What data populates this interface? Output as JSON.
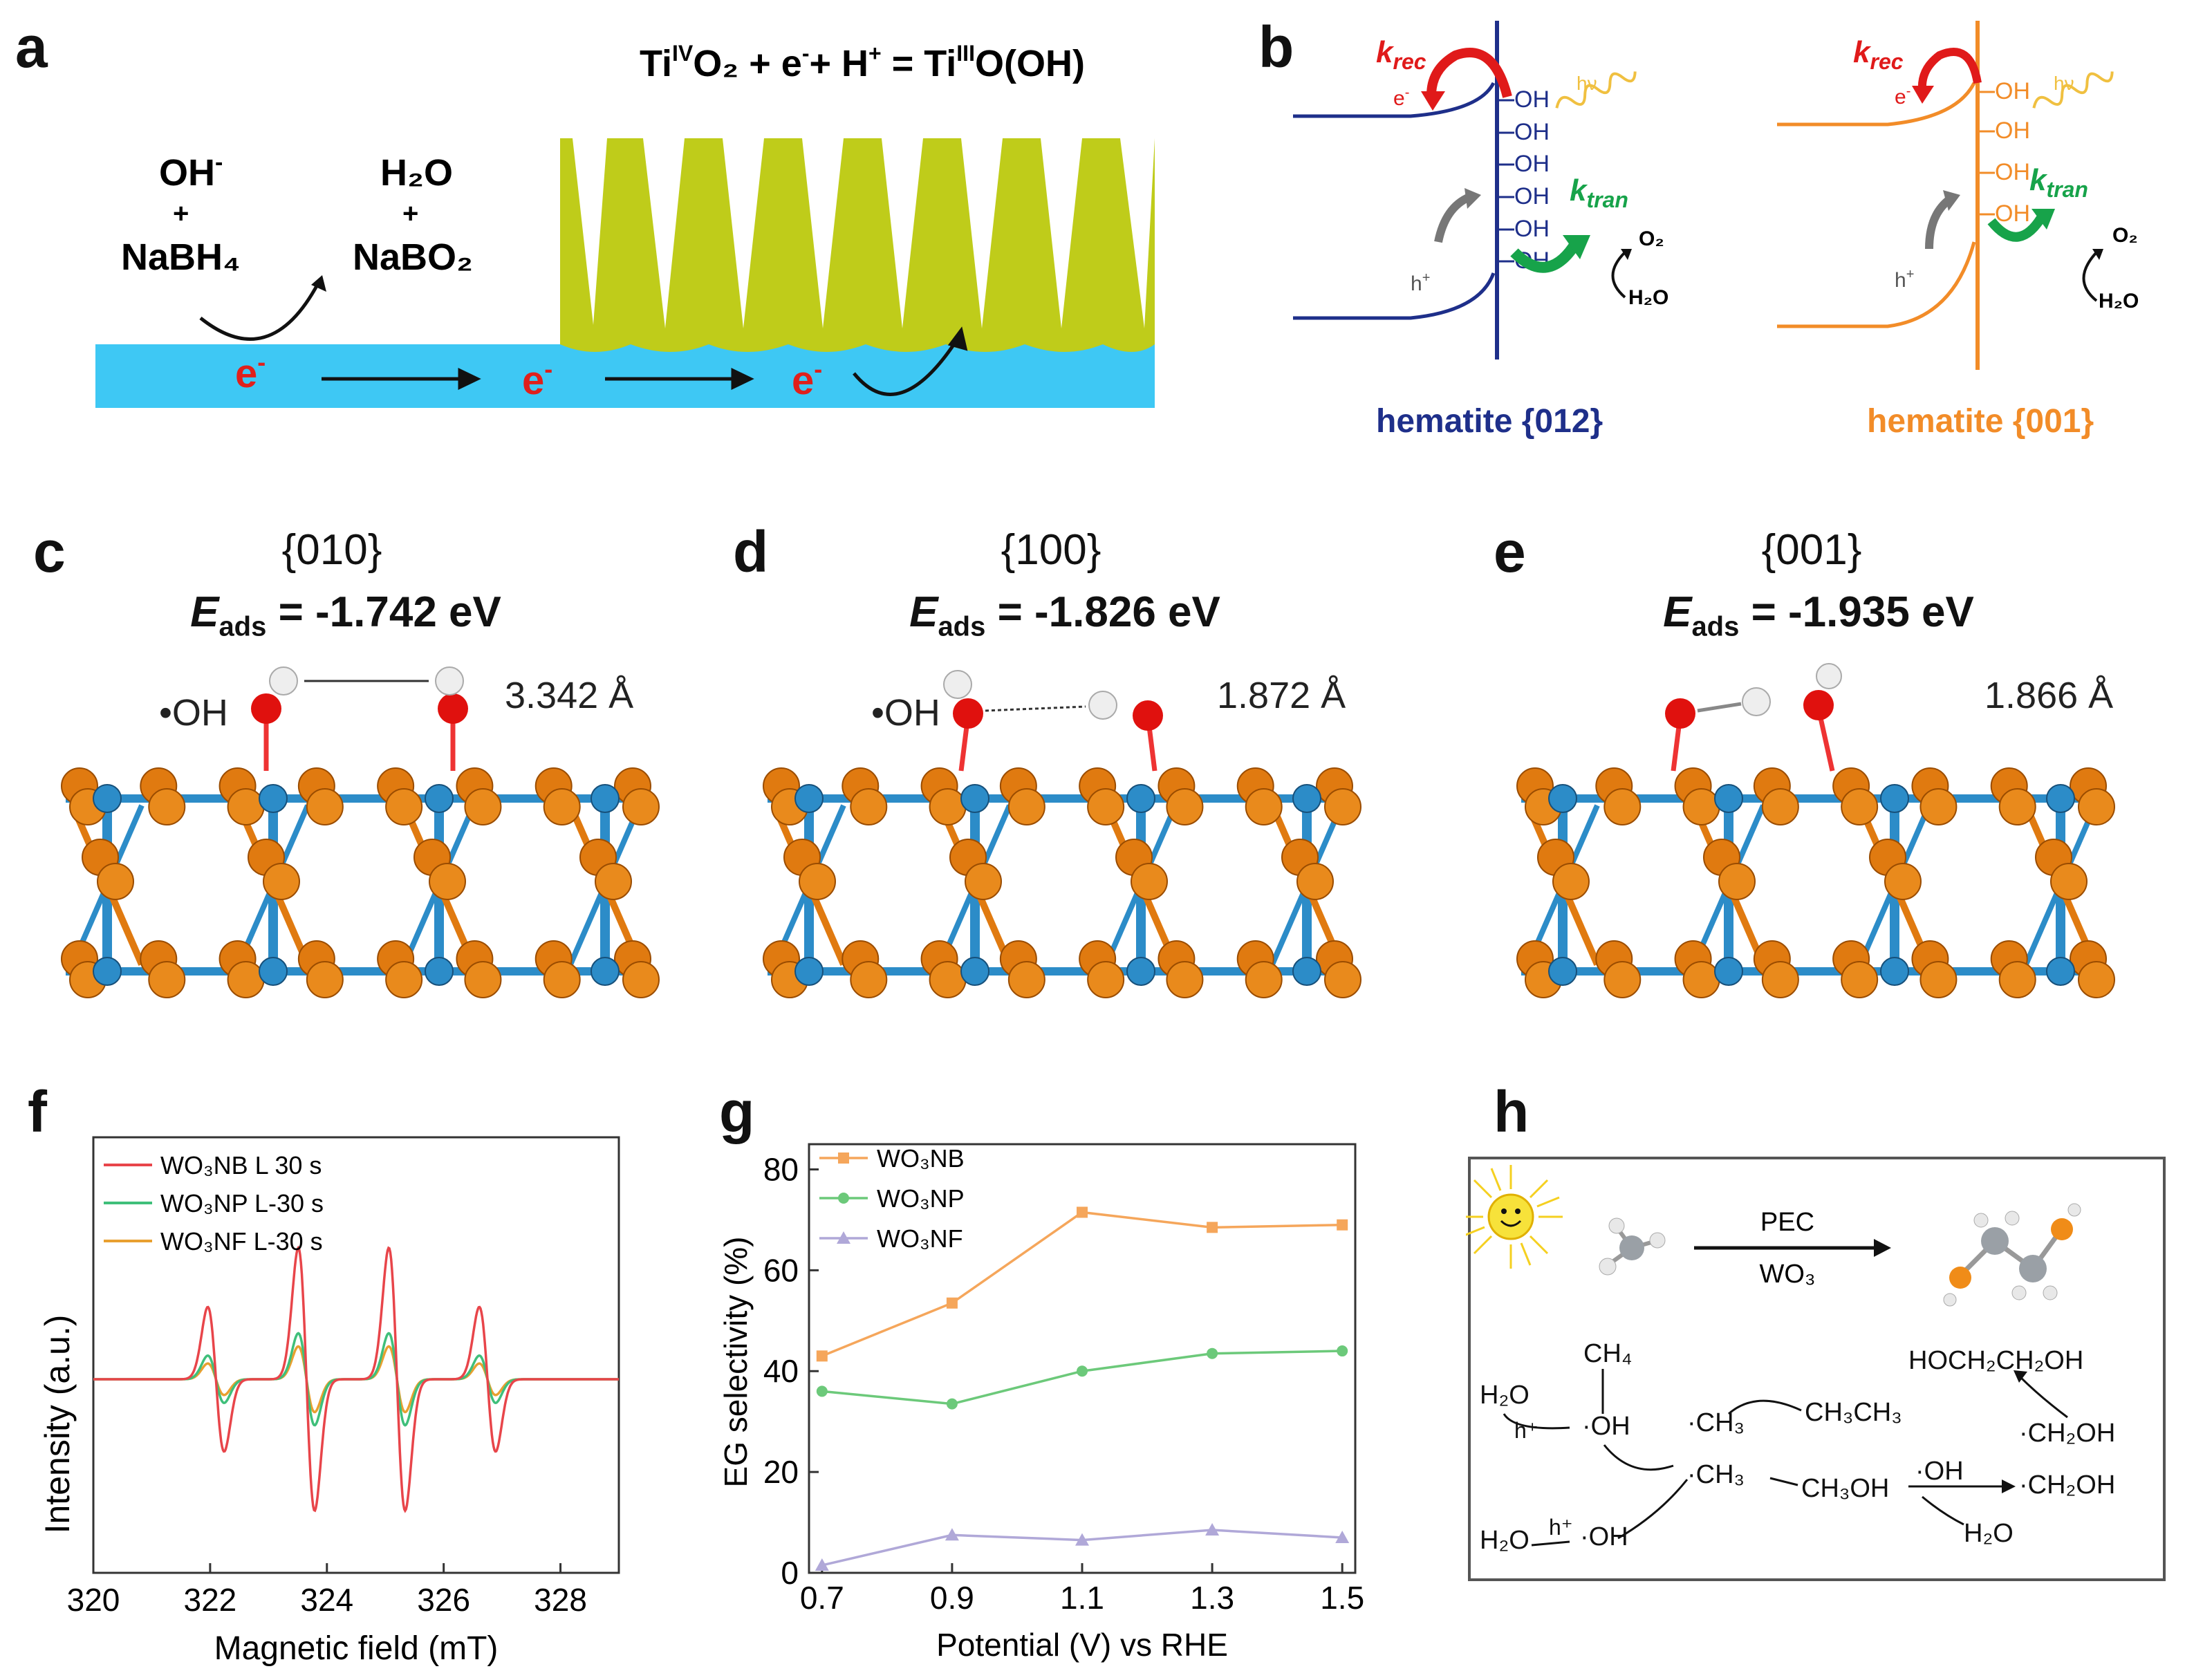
{
  "panel_labels": {
    "a": "a",
    "b": "b",
    "c": "c",
    "d": "d",
    "e": "e",
    "f": "f",
    "g": "g",
    "h": "h"
  },
  "panel_a": {
    "equation_left": "Ti",
    "equation_sup1": "IV",
    "equation_mid": "O₂ + e",
    "equation_sup2": "-",
    "equation_mid2": "+ H",
    "equation_sup3": "+",
    "equation_mid3": " = Ti",
    "equation_sup4": "III",
    "equation_right": "O(OH)",
    "reactant1": "OH",
    "reactant1_sup": "-",
    "plus": "+",
    "reactant2": "NaBH₄",
    "product1": "H₂O",
    "product2": "NaBO₂",
    "electron": "e",
    "electron_sup": "-",
    "colors": {
      "substrate": "#3ec8f4",
      "nanorods": "#bfcc1a",
      "electron": "#e0201b"
    }
  },
  "panel_b": {
    "left_caption": "hematite {012}",
    "right_caption": "hematite {001}",
    "k_rec": "k",
    "k_rec_sub": "rec",
    "k_tran": "k",
    "k_tran_sub": "tran",
    "electron": "e",
    "electron_sup": "-",
    "hole": "h",
    "hole_sup": "+",
    "hv": "hν",
    "oh": "OH",
    "o2": "O₂",
    "h2o": "H₂O",
    "colors": {
      "left": "#1e2f8a",
      "right": "#f28c28",
      "krec": "#e01a1a",
      "ktran": "#17a34a",
      "hv": "#f0c040"
    }
  },
  "panel_cde": [
    {
      "facet": "{010}",
      "eads_label": "E",
      "eads_sub": "ads",
      "eads_value": " = -1.742 eV",
      "distance": "3.342 Å",
      "oh_label": "•OH"
    },
    {
      "facet": "{100}",
      "eads_label": "E",
      "eads_sub": "ads",
      "eads_value": " = -1.826 eV",
      "distance": "1.872 Å",
      "oh_label": "•OH"
    },
    {
      "facet": "{001}",
      "eads_label": "E",
      "eads_sub": "ads",
      "eads_value": " = -1.935 eV",
      "distance": "1.866 Å",
      "oh_label": ""
    }
  ],
  "panel_f": {
    "xlabel": "Magnetic field (mT)",
    "ylabel": "Intensity (a.u.)",
    "xticks": [
      "320",
      "322",
      "324",
      "326",
      "328"
    ],
    "legend": [
      "WO₃NB L 30 s",
      "WO₃NP L-30 s",
      "WO₃NF L-30 s"
    ],
    "colors": [
      "#e8454a",
      "#3fbf7a",
      "#e8a030"
    ]
  },
  "chart_data": {
    "type": "line",
    "title": "",
    "xlabel": "Potential (V) vs RHE",
    "ylabel": "EG selectivity (%)",
    "x": [
      0.7,
      0.9,
      1.1,
      1.3,
      1.5
    ],
    "xlim": [
      0.68,
      1.52
    ],
    "ylim": [
      0,
      85
    ],
    "yticks": [
      0,
      20,
      40,
      60,
      80
    ],
    "xtick_labels": [
      "0.7",
      "0.9",
      "1.1",
      "1.3",
      "1.5"
    ],
    "ytick_labels": [
      "0",
      "20",
      "40",
      "60",
      "80"
    ],
    "series": [
      {
        "name": "WO₃NB",
        "values": [
          43.0,
          53.5,
          71.5,
          68.5,
          69.0
        ],
        "color": "#f5a65b",
        "marker": "square"
      },
      {
        "name": "WO₃NP",
        "values": [
          36.0,
          33.5,
          40.0,
          43.5,
          44.0
        ],
        "color": "#6cc97a",
        "marker": "circle"
      },
      {
        "name": "WO₃NF",
        "values": [
          1.5,
          7.5,
          6.5,
          8.5,
          7.0
        ],
        "color": "#b0a8d8",
        "marker": "triangle"
      }
    ],
    "legend_position": "top-left"
  },
  "panel_h": {
    "pec": "PEC",
    "catalyst": "WO₃",
    "ch4": "CH₄",
    "h2o": "H₂O",
    "oh": "OH",
    "ch3": "CH₃",
    "ch3ch3": "CH₃CH₃",
    "ch3oh": "CH₃OH",
    "ch2oh": "CH₂OH",
    "eg": "HOCH₂CH₂OH",
    "hplus": "h⁺",
    "dot": "·"
  }
}
